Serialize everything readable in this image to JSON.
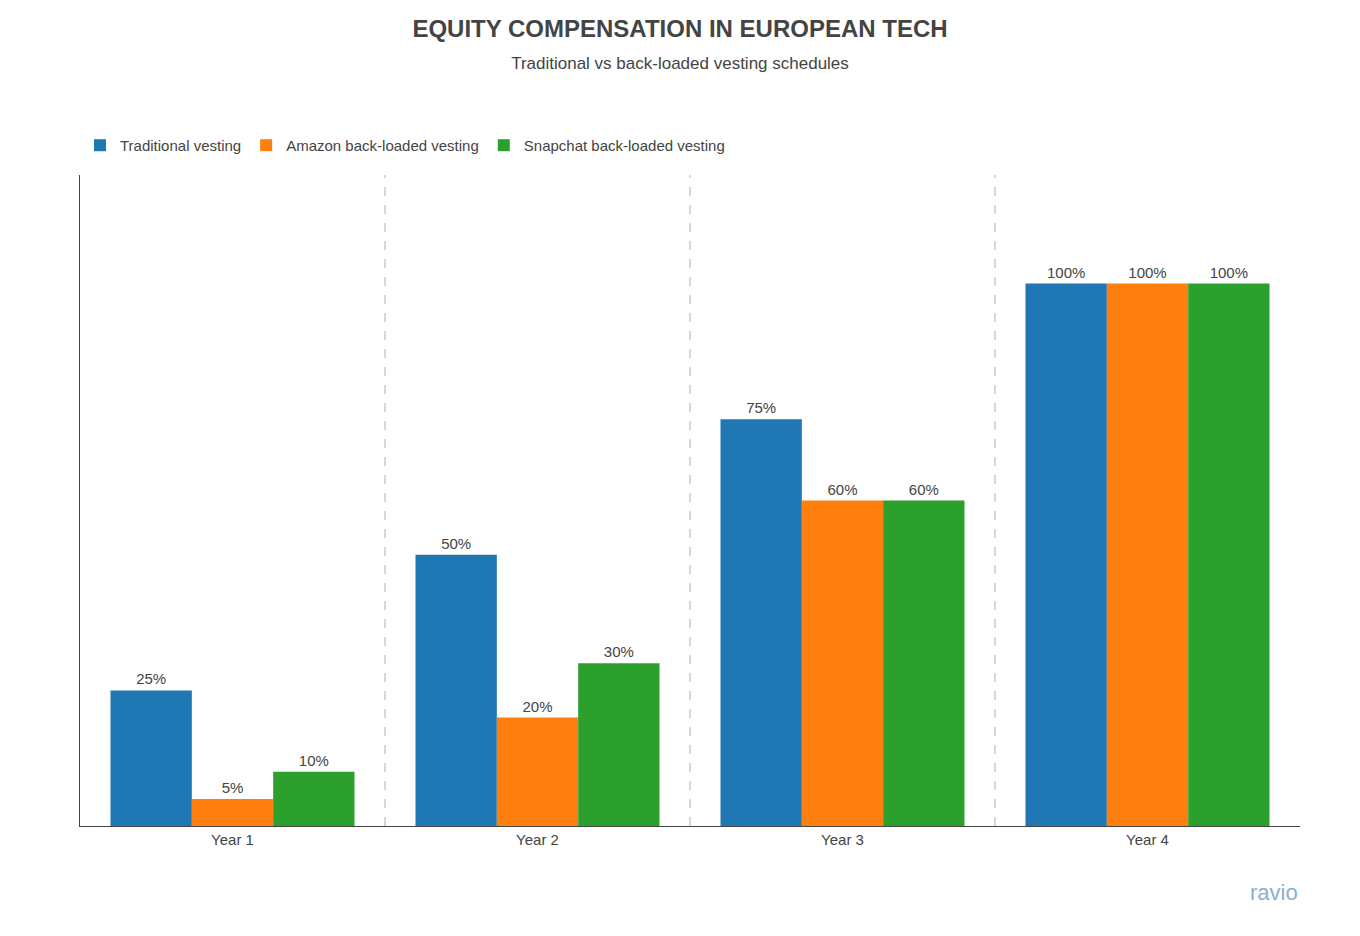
{
  "chart_data": {
    "type": "bar",
    "title": "EQUITY COMPENSATION IN EUROPEAN TECH",
    "subtitle": "Traditional vs back-loaded vesting schedules",
    "categories": [
      "Year 1",
      "Year 2",
      "Year 3",
      "Year 4"
    ],
    "series": [
      {
        "name": "Traditional vesting",
        "values": [
          25,
          50,
          75,
          100
        ],
        "value_labels": [
          "25%",
          "50%",
          "75%",
          "100%"
        ]
      },
      {
        "name": "Amazon back-loaded vesting",
        "values": [
          5,
          20,
          60,
          100
        ],
        "value_labels": [
          "5%",
          "20%",
          "60%",
          "100%"
        ]
      },
      {
        "name": "Snapchat back-loaded vesting",
        "values": [
          10,
          30,
          60,
          100
        ],
        "value_labels": [
          "10%",
          "30%",
          "60%",
          "100%"
        ]
      }
    ],
    "ylim": [
      0,
      120
    ],
    "grid": false,
    "legend": "top",
    "data_labels": true,
    "tick_labels": "x",
    "annotations": [
      {
        "text": "ravio"
      }
    ]
  }
}
